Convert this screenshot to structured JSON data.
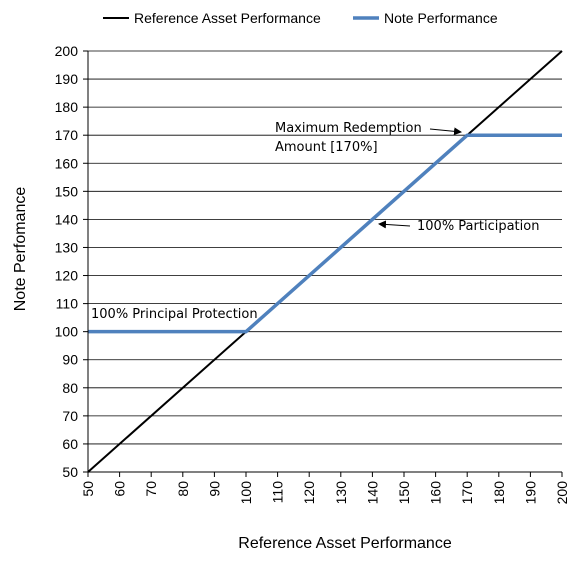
{
  "chart_data": {
    "type": "line",
    "xlabel": "Reference Asset Performance",
    "ylabel": "Note Perfomance",
    "xlim": [
      50,
      200
    ],
    "ylim": [
      50,
      200
    ],
    "xticks": [
      50,
      60,
      70,
      80,
      90,
      100,
      110,
      120,
      130,
      140,
      150,
      160,
      170,
      180,
      190,
      200
    ],
    "yticks": [
      50,
      60,
      70,
      80,
      90,
      100,
      110,
      120,
      130,
      140,
      150,
      160,
      170,
      180,
      190,
      200
    ],
    "grid": "horizontal",
    "legend_position": "top",
    "series": [
      {
        "name": "Reference Asset Performance",
        "color": "#000000",
        "x": [
          50,
          200
        ],
        "y": [
          50,
          200
        ]
      },
      {
        "name": "Note Performance",
        "color": "#4f81bd",
        "x": [
          50,
          100,
          170,
          200
        ],
        "y": [
          100,
          100,
          170,
          170
        ]
      }
    ],
    "annotations": [
      {
        "text": "100% Principal Protection",
        "x": 50,
        "y": 100
      },
      {
        "text": "100% Participation",
        "x": 140,
        "y": 140
      },
      {
        "text": "Maximum Redemption",
        "x": 170,
        "y": 170
      },
      {
        "text": "Amount [170%]",
        "x": 170,
        "y": 170
      }
    ]
  }
}
